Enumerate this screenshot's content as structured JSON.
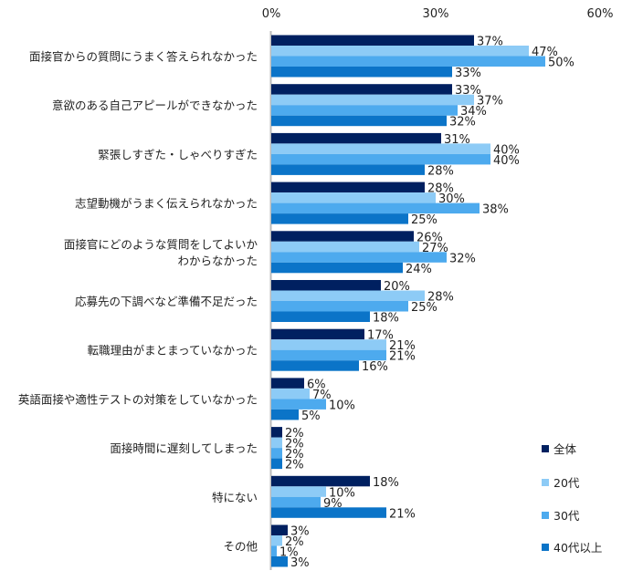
{
  "chart_data": {
    "type": "bar",
    "orientation": "horizontal",
    "xlim": [
      0,
      60
    ],
    "x_ticks": [
      "0%",
      "30%",
      "60%"
    ],
    "x_axis_position": "top",
    "grid": false,
    "legend_placement": "bottom-right",
    "categories": [
      "面接官からの質問にうまく答えられなかった",
      "意欲のある自己アピールができなかった",
      "緊張しすぎた・しゃべりすぎた",
      "志望動機がうまく伝えられなかった",
      "面接官にどのような質問をしてよいか\nわからなかった",
      "応募先の下調べなど準備不足だった",
      "転職理由がまとまっていなかった",
      "英語面接や適性テストの対策をしていなかった",
      "面接時間に遅刻してしまった",
      "特にない",
      "その他"
    ],
    "series": [
      {
        "name": "全体",
        "color": "#002060",
        "values": [
          37,
          33,
          31,
          28,
          26,
          20,
          17,
          6,
          2,
          18,
          3
        ]
      },
      {
        "name": "20代",
        "color": "#8DCBF6",
        "values": [
          47,
          37,
          40,
          30,
          27,
          28,
          21,
          7,
          2,
          10,
          2
        ]
      },
      {
        "name": "30代",
        "color": "#4DAAEE",
        "values": [
          50,
          34,
          40,
          38,
          32,
          25,
          21,
          10,
          2,
          9,
          1
        ]
      },
      {
        "name": "40代以上",
        "color": "#0B74C8",
        "values": [
          33,
          32,
          28,
          25,
          24,
          18,
          16,
          5,
          2,
          21,
          3
        ]
      }
    ],
    "value_suffix": "%"
  }
}
